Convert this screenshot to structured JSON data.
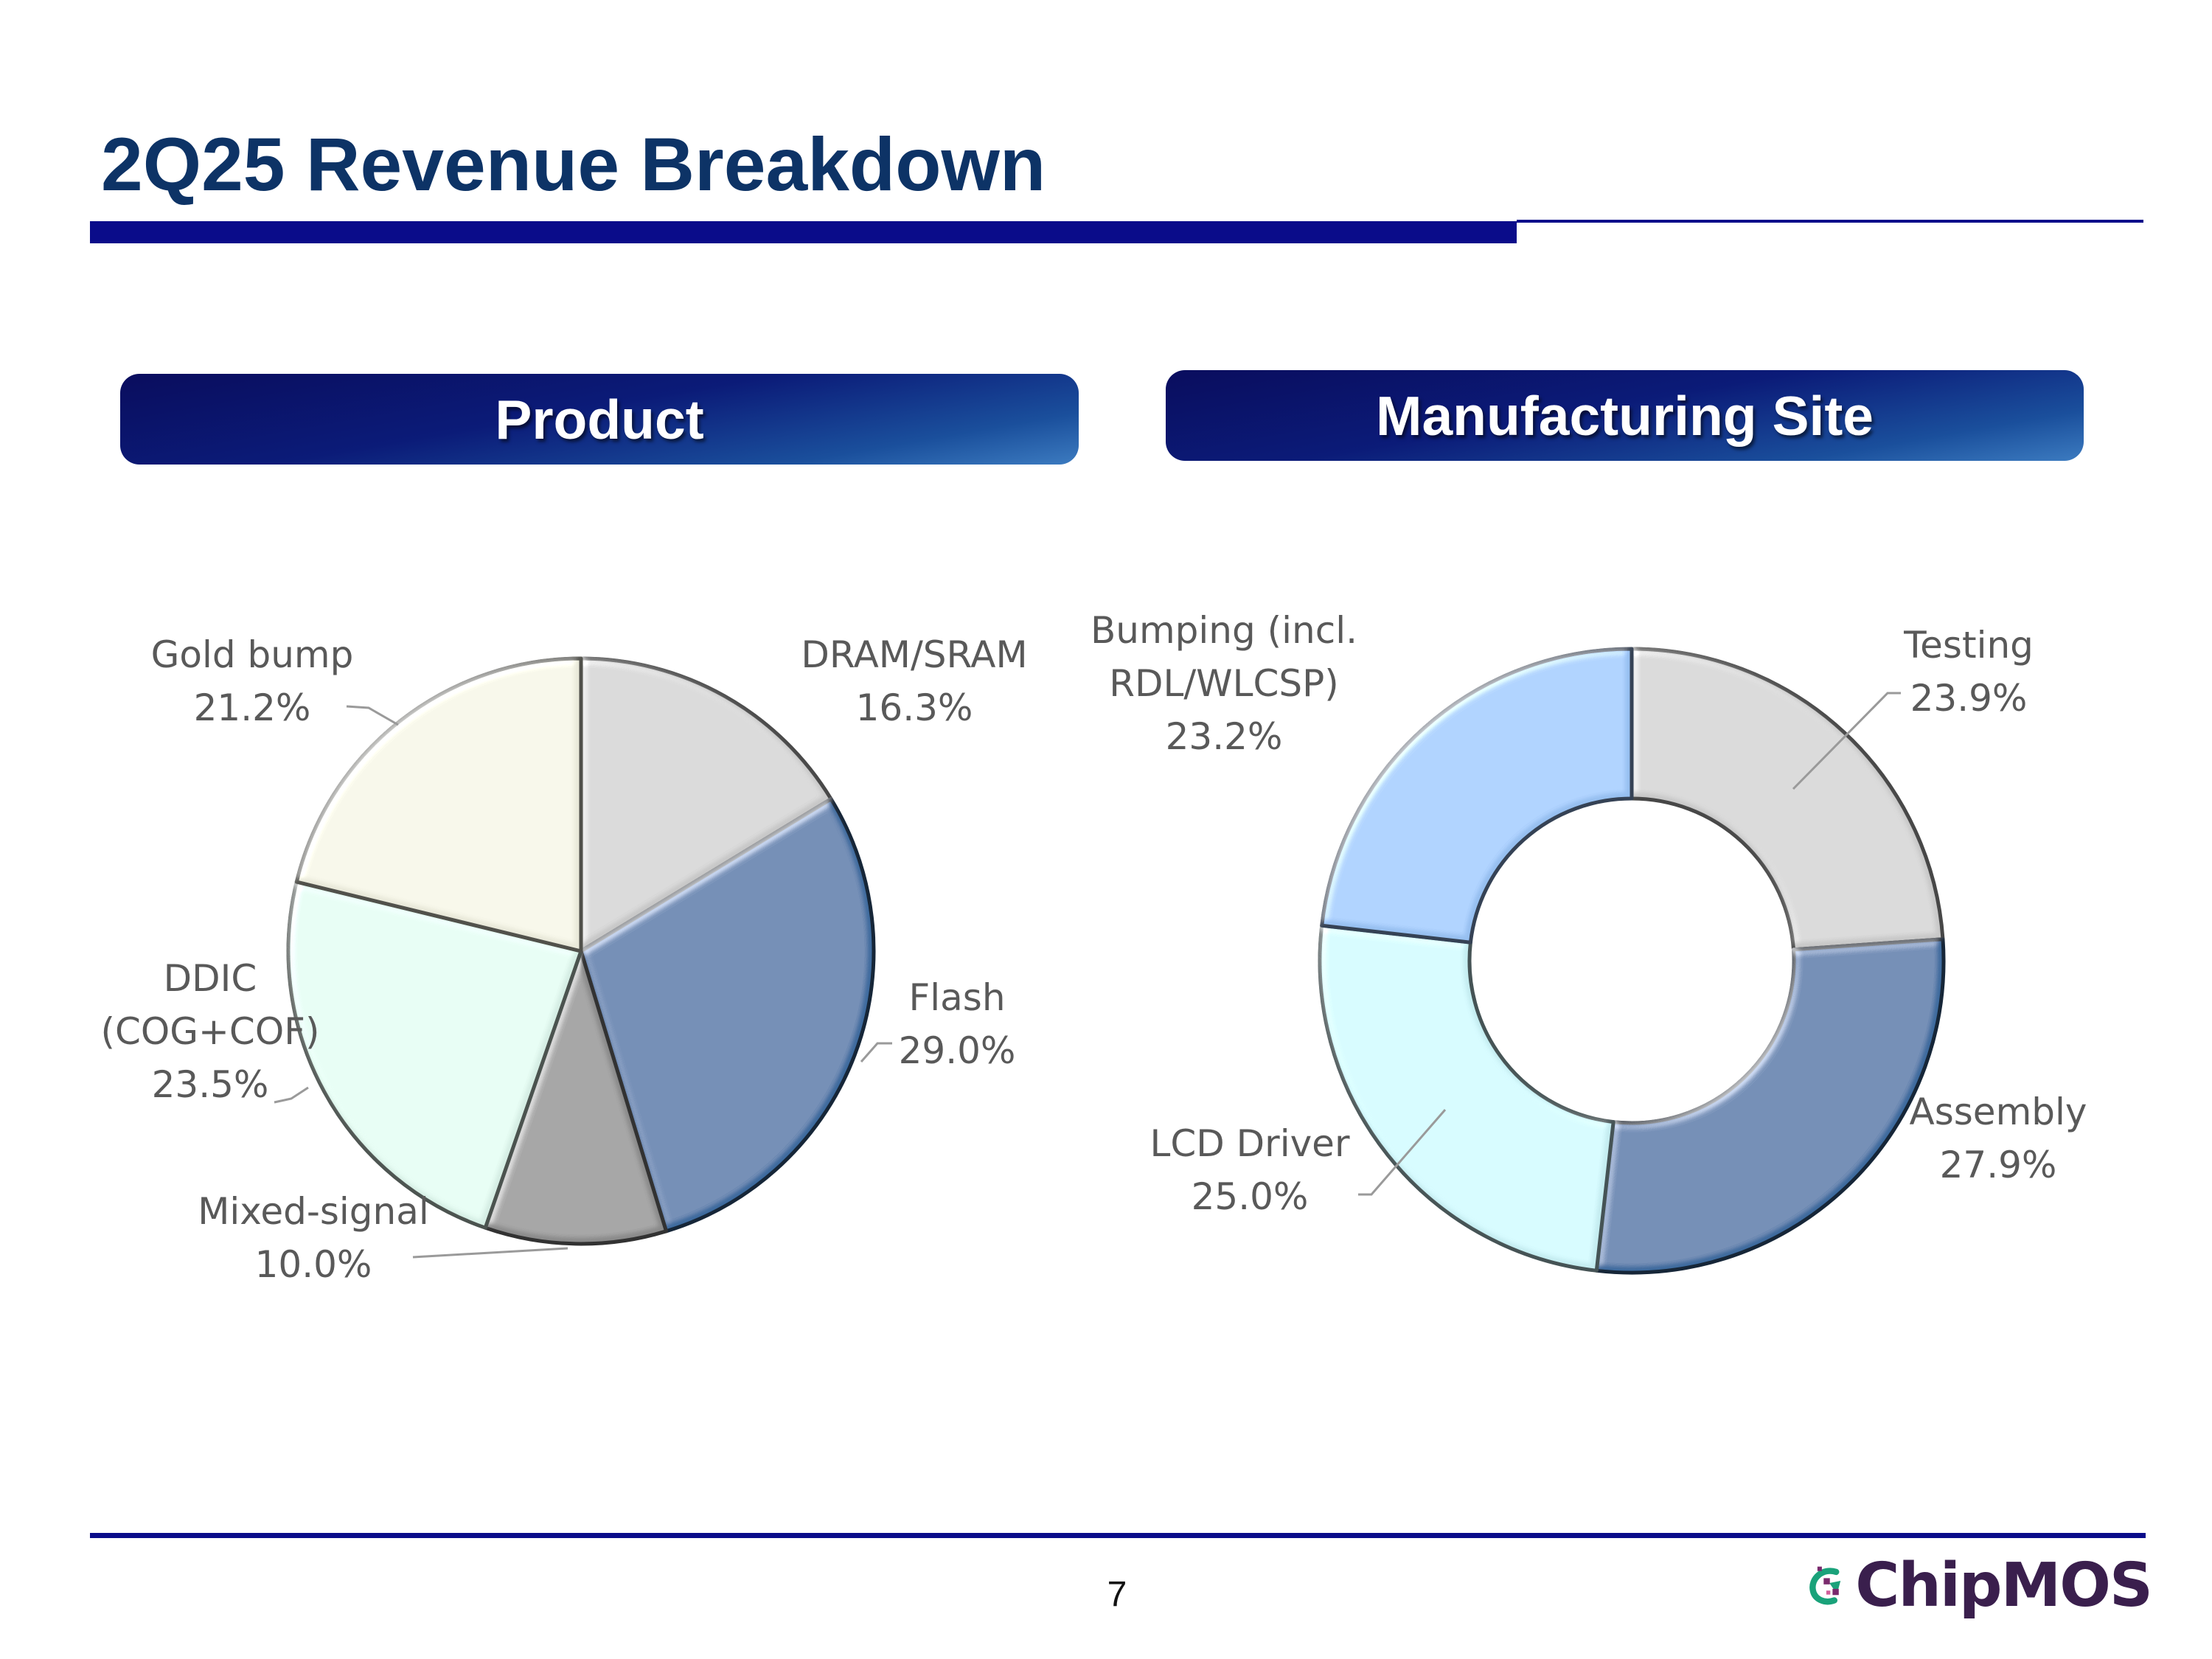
{
  "slide": {
    "title": "2Q25 Revenue Breakdown",
    "page_number": "7",
    "logo_text": "ChipMOS"
  },
  "colors": {
    "title": "#0d3366",
    "accent_bar": "#0a0c8a",
    "label_text": "#595959"
  },
  "chart_data": [
    {
      "type": "pie",
      "title": "Product",
      "slices": [
        {
          "label_lines": [
            "DRAM/SRAM"
          ],
          "value": 16.3,
          "value_label": "16.3%",
          "color": "#c8c8c8"
        },
        {
          "label_lines": [
            "Flash"
          ],
          "value": 29.0,
          "value_label": "29.0%",
          "color": "#3d6b9e"
        },
        {
          "label_lines": [
            "Mixed-signal"
          ],
          "value": 10.0,
          "value_label": "10.0%",
          "color": "#8a8a8a"
        },
        {
          "label_lines": [
            "DDIC",
            "(COG+COF)"
          ],
          "value": 23.5,
          "value_label": "23.5%",
          "color": "#d6eee4"
        },
        {
          "label_lines": [
            "Gold bump"
          ],
          "value": 21.2,
          "value_label": "21.2%",
          "color": "#e8e8d9"
        }
      ]
    },
    {
      "type": "pie",
      "subtype": "donut",
      "title": "Manufacturing Site",
      "slices": [
        {
          "label_lines": [
            "Testing"
          ],
          "value": 23.9,
          "value_label": "23.9%",
          "color": "#c8c8c8"
        },
        {
          "label_lines": [
            "Assembly"
          ],
          "value": 27.9,
          "value_label": "27.9%",
          "color": "#3d6b9e"
        },
        {
          "label_lines": [
            "LCD Driver"
          ],
          "value": 25.0,
          "value_label": "25.0%",
          "color": "#c4ecf0"
        },
        {
          "label_lines": [
            "Bumping (incl.",
            "RDL/WLCSP)"
          ],
          "value": 23.2,
          "value_label": "23.2%",
          "color": "#96bff0"
        }
      ]
    }
  ]
}
